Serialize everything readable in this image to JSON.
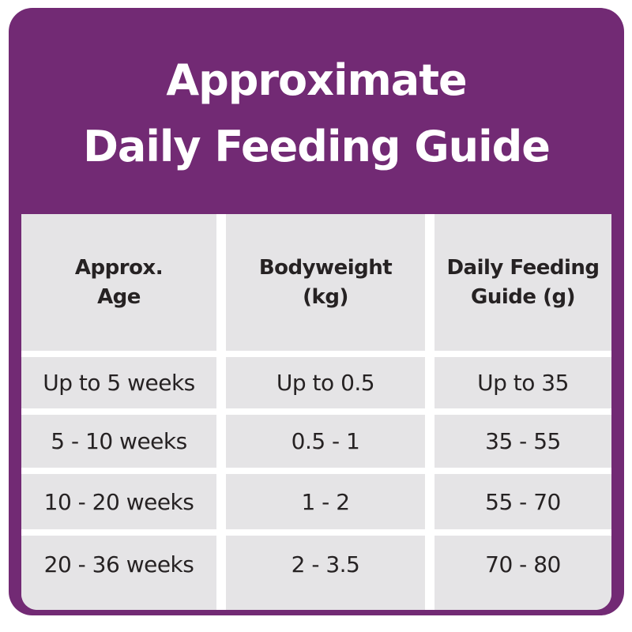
{
  "header": {
    "title_line1": "Approximate",
    "title_line2": "Daily Feeding Guide"
  },
  "table": {
    "columns": [
      {
        "label_line1": "Approx.",
        "label_line2": "Age"
      },
      {
        "label_line1": "Bodyweight",
        "label_line2": "(kg)"
      },
      {
        "label_line1": "Daily Feeding",
        "label_line2": "Guide (g)"
      }
    ],
    "rows": [
      [
        "Up to 5 weeks",
        "Up to 0.5",
        "Up to 35"
      ],
      [
        "5 - 10 weeks",
        "0.5 - 1",
        "35 - 55"
      ],
      [
        "10 - 20 weeks",
        "1 - 2",
        "55 - 70"
      ],
      [
        "20 - 36 weeks",
        "2 - 3.5",
        "70 - 80"
      ]
    ]
  },
  "chart_data": {
    "type": "table",
    "title": "Approximate Daily Feeding Guide",
    "columns": [
      "Approx. Age",
      "Bodyweight (kg)",
      "Daily Feeding Guide (g)"
    ],
    "rows": [
      [
        "Up to 5 weeks",
        "Up to 0.5",
        "Up to 35"
      ],
      [
        "5 - 10 weeks",
        "0.5 - 1",
        "35 - 55"
      ],
      [
        "10 - 20 weeks",
        "1 - 2",
        "55 - 70"
      ],
      [
        "20 - 36 weeks",
        "2 - 3.5",
        "70 - 80"
      ]
    ]
  },
  "colors": {
    "purple": "#722a74",
    "cell_gray": "#e5e4e6",
    "text_dark": "#262223",
    "title_text": "#ffffff",
    "gap_white": "#ffffff"
  }
}
